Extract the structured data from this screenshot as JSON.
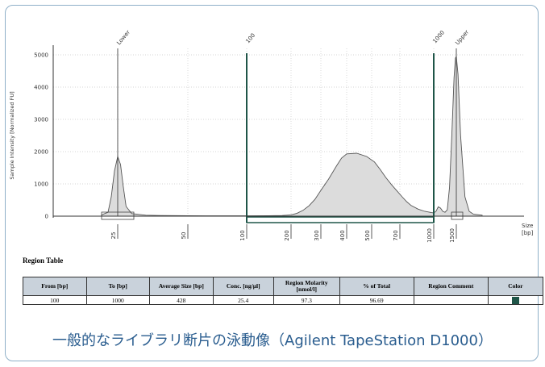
{
  "caption": "一般的なライブラリ断片の泳動像（Agilent TapeStation D1000）",
  "region_table": {
    "title": "Region Table",
    "headers": [
      "From [bp]",
      "To [bp]",
      "Average Size [bp]",
      "Conc. [ng/µl]",
      "Region Molarity [nmol/l]",
      "% of Total",
      "Region Comment",
      "Color"
    ],
    "rows": [
      {
        "from": "100",
        "to": "1000",
        "avg_size": "428",
        "conc": "25.4",
        "molarity": "97.3",
        "pct_total": "96.69",
        "comment": "",
        "color": "#1f5548"
      }
    ]
  },
  "chart_data": {
    "type": "area",
    "xlabel": "Size [bp]",
    "ylabel": "Sample Intensity [Normalized FU]",
    "ylim": [
      0,
      5200
    ],
    "y_ticks": [
      0,
      1000,
      2000,
      3000,
      4000,
      5000
    ],
    "x_ticks": [
      "25",
      "50",
      "100",
      "200",
      "300",
      "400",
      "500",
      "700",
      "1000",
      "1500"
    ],
    "peaks": [
      {
        "label": "Lower",
        "x": 25,
        "y": 1850
      },
      {
        "label": "Upper",
        "x": 1500,
        "y": 4950
      }
    ],
    "region_markers": [
      {
        "label": "100",
        "x": 100
      },
      {
        "label": "1000",
        "x": 1000
      }
    ],
    "series": [
      {
        "x": [
          20,
          22,
          23,
          24,
          25,
          26,
          27,
          28,
          30,
          35,
          40,
          50,
          70,
          100,
          150,
          180,
          200,
          220,
          240,
          260,
          280,
          300,
          330,
          360,
          380,
          400,
          440,
          480,
          520,
          560,
          600,
          640,
          680,
          720,
          760,
          800,
          860,
          920,
          980,
          1000,
          1050,
          1100,
          1150,
          1200,
          1250,
          1300,
          1350,
          1400,
          1450,
          1480,
          1500,
          1520,
          1550,
          1600,
          1650,
          1700,
          1800
        ],
        "y": [
          40,
          120,
          600,
          1400,
          1850,
          1600,
          900,
          300,
          80,
          30,
          20,
          15,
          10,
          10,
          15,
          20,
          40,
          90,
          180,
          320,
          520,
          800,
          1150,
          1550,
          1800,
          1930,
          1950,
          1850,
          1680,
          1450,
          1200,
          980,
          780,
          600,
          450,
          330,
          220,
          150,
          110,
          100,
          150,
          290,
          250,
          150,
          120,
          200,
          900,
          2500,
          4300,
          4900,
          4950,
          4400,
          2500,
          600,
          150,
          60,
          30
        ]
      }
    ]
  }
}
